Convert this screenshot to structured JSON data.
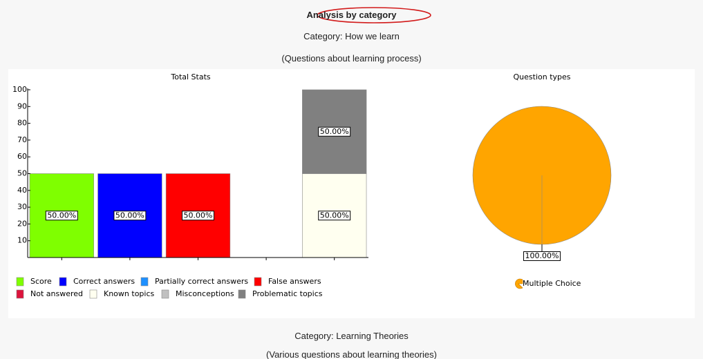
{
  "header": {
    "title": "Analysis by category",
    "category": "Category: How we learn",
    "description": "(Questions about learning process)"
  },
  "chart_data": [
    {
      "type": "bar",
      "title": "Total Stats",
      "categories": [
        null,
        null,
        null,
        null,
        null
      ],
      "series": [
        {
          "name": "Score",
          "color": "#7fff00",
          "values": [
            50,
            null,
            null,
            null,
            null
          ],
          "value_labels": [
            "50.00%",
            null,
            null,
            null,
            null
          ]
        },
        {
          "name": "Correct answers",
          "color": "#0000ff",
          "values": [
            null,
            50,
            null,
            null,
            null
          ],
          "value_labels": [
            null,
            "50.00%",
            null,
            null,
            null
          ]
        },
        {
          "name": "Partially correct answers",
          "color": "#1e90ff",
          "values": [
            null,
            null,
            null,
            null,
            null
          ],
          "value_labels": [
            null,
            null,
            null,
            null,
            null
          ]
        },
        {
          "name": "False answers",
          "color": "#ff0000",
          "values": [
            null,
            null,
            50,
            null,
            null
          ],
          "value_labels": [
            null,
            null,
            "50.00%",
            null,
            null
          ]
        },
        {
          "name": "Not answered",
          "color": "#dc143c",
          "values": [
            null,
            null,
            null,
            null,
            null
          ],
          "value_labels": [
            null,
            null,
            null,
            null,
            null
          ]
        },
        {
          "name": "Known topics",
          "color": "#fffff0",
          "values": [
            null,
            null,
            null,
            null,
            50
          ],
          "value_labels": [
            null,
            null,
            null,
            null,
            "50.00%"
          ]
        },
        {
          "name": "Misconceptions",
          "color": "#c0c0c0",
          "values": [
            null,
            null,
            null,
            null,
            null
          ],
          "value_labels": [
            null,
            null,
            null,
            null,
            null
          ]
        },
        {
          "name": "Problematic topics",
          "color": "#808080",
          "values": [
            null,
            null,
            null,
            null,
            50
          ],
          "value_labels": [
            null,
            null,
            null,
            null,
            "50.00%"
          ]
        }
      ],
      "ylim": [
        0,
        100
      ],
      "yticks": [
        10,
        20,
        30,
        40,
        50,
        60,
        70,
        80,
        90,
        100
      ],
      "stacked": true
    },
    {
      "type": "pie",
      "title": "Question types",
      "categories": [
        "Multiple Choice"
      ],
      "values": [
        100
      ],
      "value_labels": [
        "100.00%"
      ],
      "colors": [
        "#ffa500"
      ]
    }
  ],
  "footer": {
    "category": "Category: Learning Theories",
    "description": "(Various questions about learning theories)"
  }
}
